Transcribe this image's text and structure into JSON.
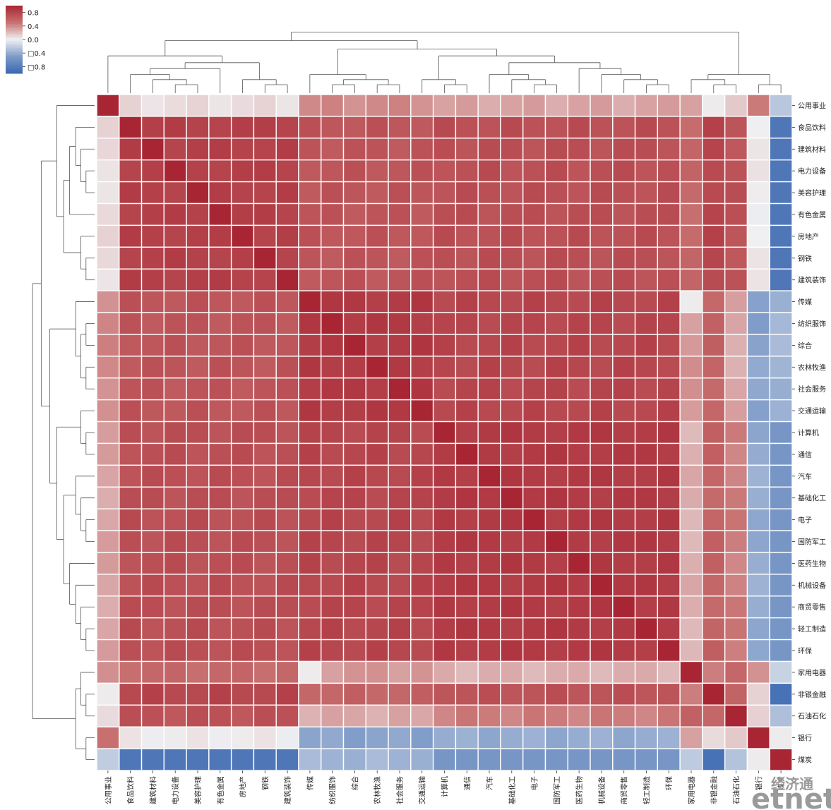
{
  "chart_data": {
    "type": "heatmap",
    "title": "",
    "labels": [
      "公用事业",
      "食品饮料",
      "建筑材料",
      "电力设备",
      "美容护理",
      "有色金属",
      "房地产",
      "钢铁",
      "建筑装饰",
      "传媒",
      "纺织服饰",
      "综合",
      "农林牧渔",
      "社会服务",
      "交通运输",
      "计算机",
      "通信",
      "汽车",
      "基础化工",
      "电子",
      "国防军工",
      "医药生物",
      "机械设备",
      "商贸零售",
      "轻工制造",
      "环保",
      "家用电器",
      "非银金融",
      "石油石化",
      "银行",
      "煤炭"
    ],
    "colorbar": {
      "vmin": -1.0,
      "vmax": 1.0,
      "tick_values": [
        0.8,
        0.4,
        0.0,
        -0.4,
        -0.8
      ],
      "tick_labels": [
        "0.8",
        "0.4",
        "0.0",
        "□0.4",
        "□0.8"
      ]
    },
    "row_dendrogram": true,
    "col_dendrogram": true,
    "watermark": {
      "line1": "经济通",
      "line2": "etnet"
    }
  }
}
